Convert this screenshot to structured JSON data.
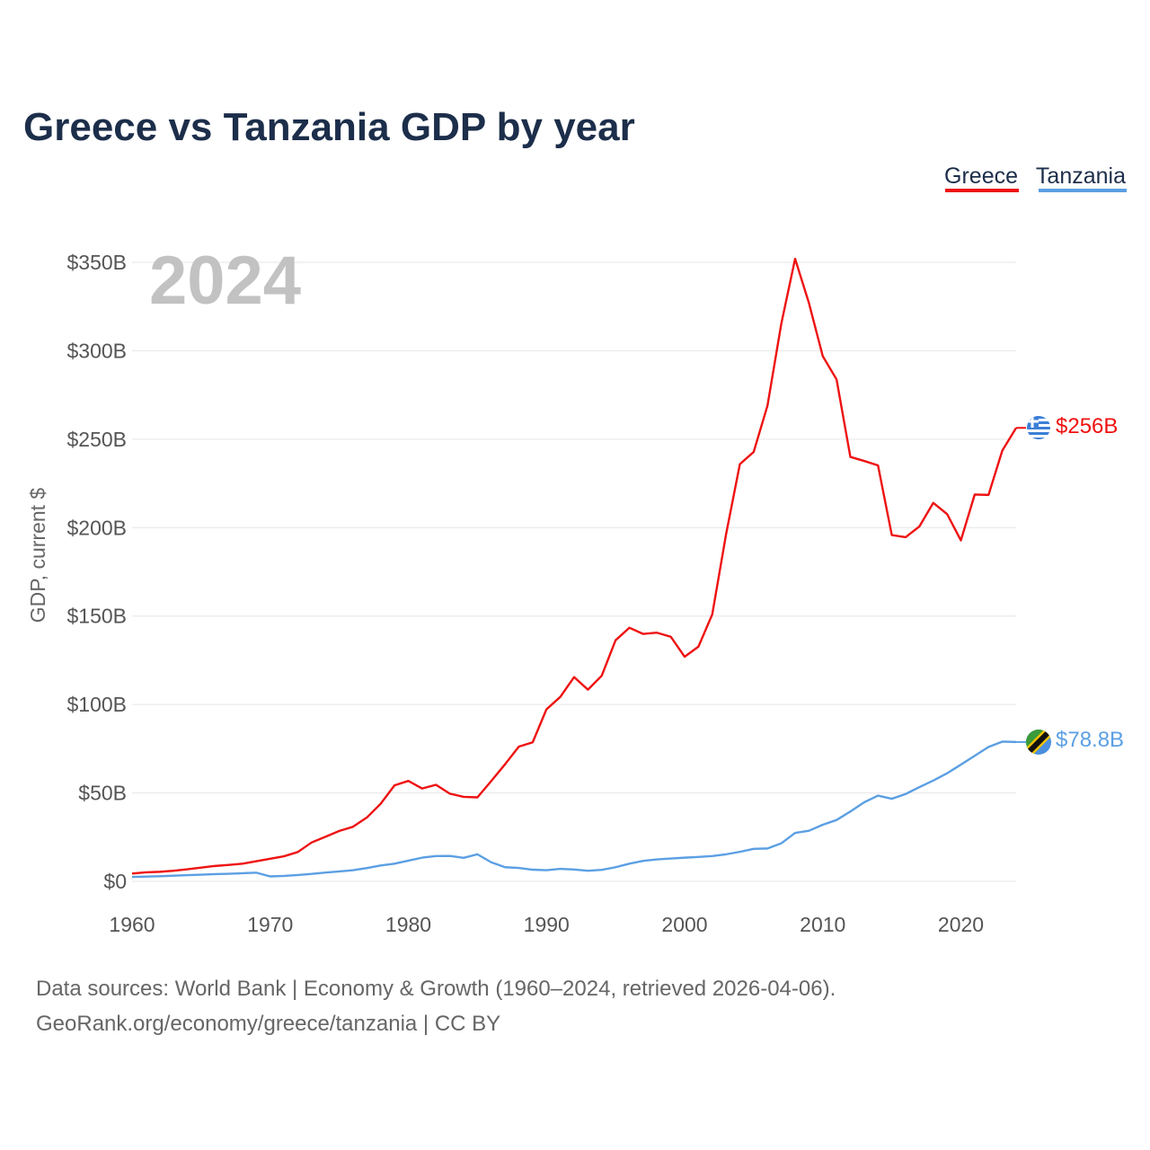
{
  "title": "Greece vs Tanzania GDP by year",
  "year_label": "2024",
  "source_line1": "Data sources: World Bank | Economy & Growth (1960–2024, retrieved 2026-04-06).",
  "source_line2": "GeoRank.org/economy/greece/tanzania | CC BY",
  "chart_data": {
    "type": "line",
    "title": "Greece vs Tanzania GDP by year",
    "xlabel": "",
    "ylabel": "GDP, current $",
    "xlim": [
      1960,
      2024
    ],
    "ylim": [
      0,
      350
    ],
    "y_unit": "billion USD",
    "grid": true,
    "legend_position": "top-right",
    "x_ticks": [
      1960,
      1970,
      1980,
      1990,
      2000,
      2010,
      2020
    ],
    "x_tick_labels": [
      "1960",
      "1970",
      "1980",
      "1990",
      "2000",
      "2010",
      "2020"
    ],
    "y_ticks": [
      0,
      50,
      100,
      150,
      200,
      250,
      300,
      350
    ],
    "y_tick_labels": [
      "$0",
      "$50B",
      "$100B",
      "$150B",
      "$200B",
      "$250B",
      "$300B",
      "$350B"
    ],
    "x": [
      1960,
      1961,
      1962,
      1963,
      1964,
      1965,
      1966,
      1967,
      1968,
      1969,
      1970,
      1971,
      1972,
      1973,
      1974,
      1975,
      1976,
      1977,
      1978,
      1979,
      1980,
      1981,
      1982,
      1983,
      1984,
      1985,
      1986,
      1987,
      1988,
      1989,
      1990,
      1991,
      1992,
      1993,
      1994,
      1995,
      1996,
      1997,
      1998,
      1999,
      2000,
      2001,
      2002,
      2003,
      2004,
      2005,
      2006,
      2007,
      2008,
      2009,
      2010,
      2011,
      2012,
      2013,
      2014,
      2015,
      2016,
      2017,
      2018,
      2019,
      2020,
      2021,
      2022,
      2023,
      2024
    ],
    "series": [
      {
        "name": "Greece",
        "color": "#ee1111",
        "end_label": "$256B",
        "values": [
          4.4,
          5.1,
          5.4,
          6.0,
          6.8,
          7.8,
          8.7,
          9.3,
          10.0,
          11.4,
          12.8,
          14.2,
          16.6,
          22.0,
          25.2,
          28.5,
          30.9,
          36.1,
          43.9,
          54.3,
          56.8,
          52.5,
          54.6,
          49.6,
          47.8,
          47.5,
          56.7,
          66.2,
          76.2,
          78.6,
          97.3,
          104.3,
          115.5,
          108.4,
          116.3,
          136.3,
          143.4,
          139.9,
          140.6,
          138.3,
          127.0,
          132.7,
          150.9,
          196.2,
          235.9,
          242.8,
          269.0,
          315.3,
          352.0,
          327.0,
          297.0,
          283.8,
          240.0,
          237.7,
          235.2,
          195.8,
          194.6,
          200.7,
          214.0,
          207.7,
          192.8,
          218.7,
          218.5,
          243.6,
          256.4
        ]
      },
      {
        "name": "Tanzania",
        "color": "#5b9fe3",
        "end_label": "$78.8B",
        "values": [
          2.5,
          2.7,
          2.9,
          3.2,
          3.5,
          3.8,
          4.1,
          4.3,
          4.6,
          4.9,
          2.8,
          3.1,
          3.6,
          4.2,
          5.0,
          5.6,
          6.3,
          7.5,
          9.0,
          10.0,
          11.7,
          13.4,
          14.3,
          14.4,
          13.3,
          15.3,
          10.8,
          8.0,
          7.6,
          6.6,
          6.3,
          7.1,
          6.7,
          6.0,
          6.5,
          8.0,
          10.0,
          11.6,
          12.4,
          12.9,
          13.4,
          13.8,
          14.3,
          15.3,
          16.7,
          18.4,
          18.6,
          21.5,
          27.4,
          28.6,
          32.0,
          34.7,
          39.5,
          44.7,
          48.5,
          46.7,
          49.4,
          53.3,
          57.0,
          61.1,
          66.0,
          71.0,
          76.0,
          79.0,
          78.8
        ]
      }
    ]
  }
}
